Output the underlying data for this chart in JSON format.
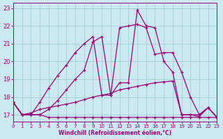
{
  "xlabel": "Windchill (Refroidissement éolien,°C)",
  "background_color": "#cce8f0",
  "grid_color": "#99cccc",
  "line_color": "#990077",
  "xlim": [
    0,
    23
  ],
  "ylim": [
    16.6,
    23.3
  ],
  "xticks": [
    0,
    1,
    2,
    3,
    4,
    5,
    6,
    7,
    8,
    9,
    10,
    11,
    12,
    13,
    14,
    15,
    16,
    17,
    18,
    19,
    20,
    21,
    22,
    23
  ],
  "yticks": [
    17,
    18,
    19,
    20,
    21,
    22,
    23
  ],
  "lines": [
    {
      "x": [
        0,
        1,
        2,
        3,
        4,
        5,
        6,
        7,
        8,
        9,
        10,
        11,
        12,
        13,
        14,
        15,
        16,
        17,
        18,
        19,
        20,
        21,
        22,
        23
      ],
      "y": [
        17.7,
        17.0,
        17.0,
        17.0,
        16.85,
        16.85,
        16.85,
        16.85,
        16.85,
        16.85,
        16.85,
        16.85,
        16.85,
        16.85,
        16.85,
        16.85,
        16.85,
        16.85,
        16.85,
        16.85,
        16.85,
        16.85,
        16.85,
        16.85
      ]
    },
    {
      "x": [
        0,
        1,
        2,
        3,
        4,
        5,
        6,
        7,
        8,
        9,
        10,
        11,
        12,
        13,
        14,
        15,
        16,
        17,
        18,
        19,
        20,
        21,
        22,
        23
      ],
      "y": [
        17.7,
        17.0,
        17.1,
        17.3,
        17.4,
        17.5,
        17.6,
        17.7,
        17.85,
        18.0,
        18.1,
        18.2,
        18.4,
        18.5,
        18.6,
        18.7,
        18.8,
        18.85,
        18.9,
        17.0,
        17.0,
        17.0,
        17.4,
        16.85
      ]
    },
    {
      "x": [
        0,
        1,
        2,
        3,
        4,
        5,
        6,
        7,
        8,
        9,
        10,
        11,
        12,
        13,
        14,
        15,
        16,
        17,
        18,
        19,
        20,
        21,
        22,
        23
      ],
      "y": [
        17.7,
        17.0,
        17.0,
        17.0,
        17.3,
        17.8,
        18.4,
        19.0,
        19.5,
        21.1,
        21.4,
        18.1,
        18.8,
        18.8,
        22.9,
        22.0,
        21.9,
        20.0,
        19.4,
        17.0,
        17.0,
        16.9,
        17.4,
        16.85
      ]
    },
    {
      "x": [
        0,
        1,
        2,
        3,
        4,
        5,
        6,
        7,
        8,
        9,
        10,
        11,
        12,
        13,
        14,
        15,
        16,
        17,
        18,
        19,
        20,
        21,
        22,
        23
      ],
      "y": [
        17.7,
        17.0,
        17.0,
        17.7,
        18.5,
        19.2,
        19.8,
        20.5,
        21.0,
        21.4,
        18.1,
        18.1,
        21.9,
        22.0,
        22.1,
        21.9,
        20.4,
        20.5,
        20.5,
        19.4,
        18.0,
        17.0,
        17.4,
        16.85
      ]
    }
  ]
}
